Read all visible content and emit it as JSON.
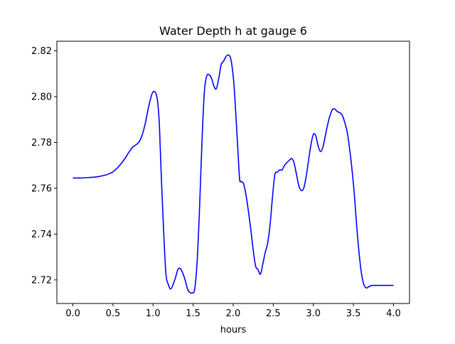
{
  "chart_data": {
    "type": "line",
    "title": "Water Depth h at gauge 6",
    "xlabel": "hours",
    "ylabel": "",
    "xlim": [
      -0.2,
      4.2
    ],
    "ylim": [
      2.7097,
      2.8242
    ],
    "grid": false,
    "line_color": "#0000ff",
    "x_ticks": [
      {
        "value": 0.0,
        "label": "0.0"
      },
      {
        "value": 0.5,
        "label": "0.5"
      },
      {
        "value": 1.0,
        "label": "1.0"
      },
      {
        "value": 1.5,
        "label": "1.5"
      },
      {
        "value": 2.0,
        "label": "2.0"
      },
      {
        "value": 2.5,
        "label": "2.5"
      },
      {
        "value": 3.0,
        "label": "3.0"
      },
      {
        "value": 3.5,
        "label": "3.5"
      },
      {
        "value": 4.0,
        "label": "4.0"
      }
    ],
    "y_ticks": [
      {
        "value": 2.72,
        "label": "2.72"
      },
      {
        "value": 2.74,
        "label": "2.74"
      },
      {
        "value": 2.76,
        "label": "2.76"
      },
      {
        "value": 2.78,
        "label": "2.78"
      },
      {
        "value": 2.8,
        "label": "2.80"
      },
      {
        "value": 2.82,
        "label": "2.82"
      }
    ],
    "series": [
      {
        "x": [
          0.0,
          0.1,
          0.2,
          0.3,
          0.4,
          0.45,
          0.5,
          0.55,
          0.6,
          0.65,
          0.7,
          0.75,
          0.8,
          0.83,
          0.86,
          0.9,
          0.94,
          0.98,
          1.0,
          1.02,
          1.04,
          1.06,
          1.08,
          1.1,
          1.13,
          1.16,
          1.19,
          1.22,
          1.25,
          1.28,
          1.31,
          1.34,
          1.37,
          1.4,
          1.43,
          1.46,
          1.49,
          1.52,
          1.55,
          1.58,
          1.61,
          1.64,
          1.67,
          1.7,
          1.73,
          1.76,
          1.79,
          1.82,
          1.85,
          1.88,
          1.91,
          1.94,
          1.97,
          2.0,
          2.02,
          2.04,
          2.06,
          2.08,
          2.1,
          2.13,
          2.16,
          2.19,
          2.22,
          2.25,
          2.28,
          2.31,
          2.34,
          2.37,
          2.4,
          2.43,
          2.46,
          2.49,
          2.52,
          2.55,
          2.58,
          2.61,
          2.64,
          2.67,
          2.7,
          2.73,
          2.76,
          2.79,
          2.82,
          2.85,
          2.88,
          2.91,
          2.94,
          2.97,
          3.0,
          3.03,
          3.06,
          3.09,
          3.12,
          3.15,
          3.18,
          3.21,
          3.24,
          3.27,
          3.3,
          3.33,
          3.36,
          3.39,
          3.42,
          3.45,
          3.48,
          3.51,
          3.54,
          3.57,
          3.6,
          3.63,
          3.66,
          3.69,
          3.72,
          3.75,
          3.78,
          3.81,
          3.84,
          3.87,
          3.9,
          3.93,
          3.96,
          3.99,
          4.0
        ],
        "y": [
          2.7645,
          2.7645,
          2.7647,
          2.765,
          2.7657,
          2.7663,
          2.7672,
          2.7687,
          2.7707,
          2.773,
          2.7758,
          2.7781,
          2.7793,
          2.7805,
          2.7828,
          2.7878,
          2.7948,
          2.8005,
          2.802,
          2.8022,
          2.801,
          2.797,
          2.787,
          2.768,
          2.743,
          2.723,
          2.718,
          2.716,
          2.718,
          2.721,
          2.7245,
          2.725,
          2.723,
          2.72,
          2.716,
          2.7145,
          2.7143,
          2.716,
          2.728,
          2.751,
          2.78,
          2.802,
          2.809,
          2.8095,
          2.808,
          2.8045,
          2.8035,
          2.808,
          2.814,
          2.8155,
          2.8175,
          2.8182,
          2.8165,
          2.809,
          2.8,
          2.788,
          2.776,
          2.764,
          2.763,
          2.762,
          2.757,
          2.75,
          2.742,
          2.733,
          2.726,
          2.7245,
          2.7225,
          2.727,
          2.732,
          2.736,
          2.744,
          2.756,
          2.766,
          2.767,
          2.768,
          2.768,
          2.77,
          2.7712,
          2.7722,
          2.773,
          2.771,
          2.766,
          2.761,
          2.759,
          2.76,
          2.765,
          2.772,
          2.779,
          2.7835,
          2.783,
          2.7785,
          2.776,
          2.778,
          2.783,
          2.788,
          2.792,
          2.7945,
          2.7945,
          2.7935,
          2.793,
          2.792,
          2.789,
          2.785,
          2.778,
          2.769,
          2.758,
          2.744,
          2.732,
          2.723,
          2.718,
          2.7165,
          2.717,
          2.7175,
          2.7176,
          2.7176,
          2.7176,
          2.7176,
          2.7176,
          2.7176,
          2.7176,
          2.7176,
          2.7176,
          2.7176
        ]
      }
    ]
  }
}
